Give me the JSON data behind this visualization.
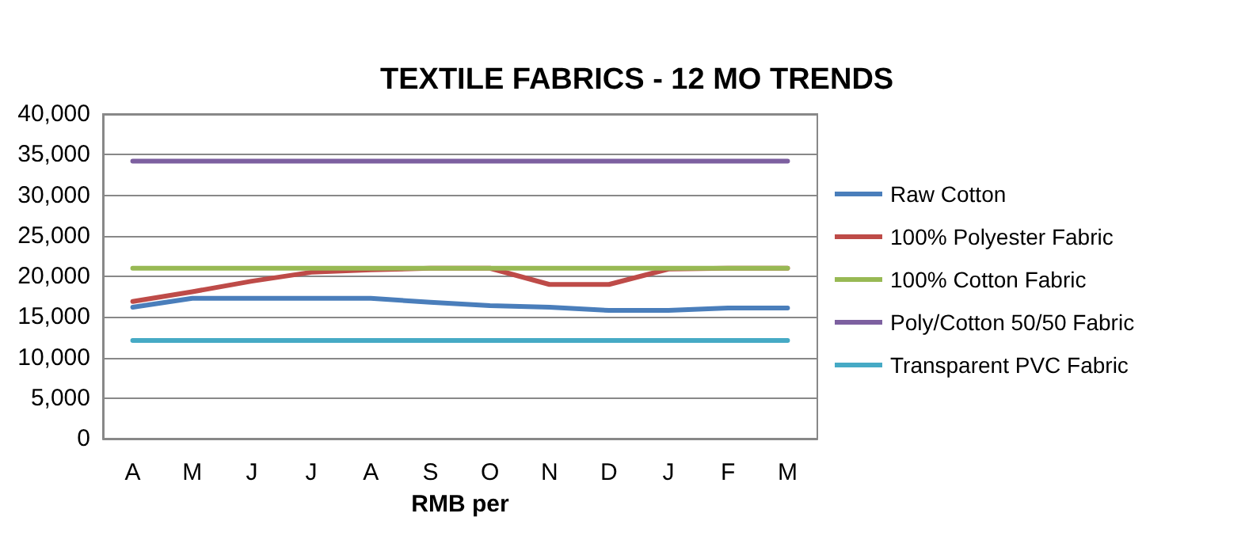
{
  "chart_data": {
    "type": "line",
    "title": "TEXTILE FABRICS - 12 MO TRENDS",
    "xlabel": "RMB per",
    "categories": [
      "A",
      "M",
      "J",
      "J",
      "A",
      "S",
      "O",
      "N",
      "D",
      "J",
      "F",
      "M"
    ],
    "series": [
      {
        "name": "Raw Cotton",
        "color": "#4a7ebb",
        "values": [
          16200,
          17300,
          17300,
          17300,
          17300,
          16800,
          16400,
          16200,
          15800,
          15800,
          16100,
          16100
        ]
      },
      {
        "name": "100% Polyester Fabric",
        "color": "#be4b48",
        "values": [
          16900,
          18100,
          19400,
          20500,
          20800,
          21000,
          21000,
          19000,
          19000,
          20900,
          21000,
          21000
        ]
      },
      {
        "name": "100% Cotton Fabric",
        "color": "#98b954",
        "values": [
          21000,
          21000,
          21000,
          21000,
          21000,
          21000,
          21000,
          21000,
          21000,
          21000,
          21000,
          21000
        ]
      },
      {
        "name": "Poly/Cotton 50/50 Fabric",
        "color": "#7d60a0",
        "values": [
          34200,
          34200,
          34200,
          34200,
          34200,
          34200,
          34200,
          34200,
          34200,
          34200,
          34200,
          34200
        ]
      },
      {
        "name": "Transparent PVC Fabric",
        "color": "#46aac5",
        "values": [
          12100,
          12100,
          12100,
          12100,
          12100,
          12100,
          12100,
          12100,
          12100,
          12100,
          12100,
          12100
        ]
      }
    ],
    "ylim": [
      0,
      40000
    ],
    "yticks": [
      0,
      {
        "value": 5000,
        "label": "5,000"
      },
      {
        "value": 10000,
        "label": "10,000"
      },
      {
        "value": 15000,
        "label": "15,000"
      },
      {
        "value": 20000,
        "label": "20,000"
      },
      {
        "value": 25000,
        "label": "25,000"
      },
      {
        "value": 30000,
        "label": "30,000"
      },
      {
        "value": 35000,
        "label": "35,000"
      },
      {
        "value": 40000,
        "label": "40,000"
      }
    ],
    "grid": "y",
    "legend": "right",
    "marker": "none",
    "line_style": "solid"
  }
}
